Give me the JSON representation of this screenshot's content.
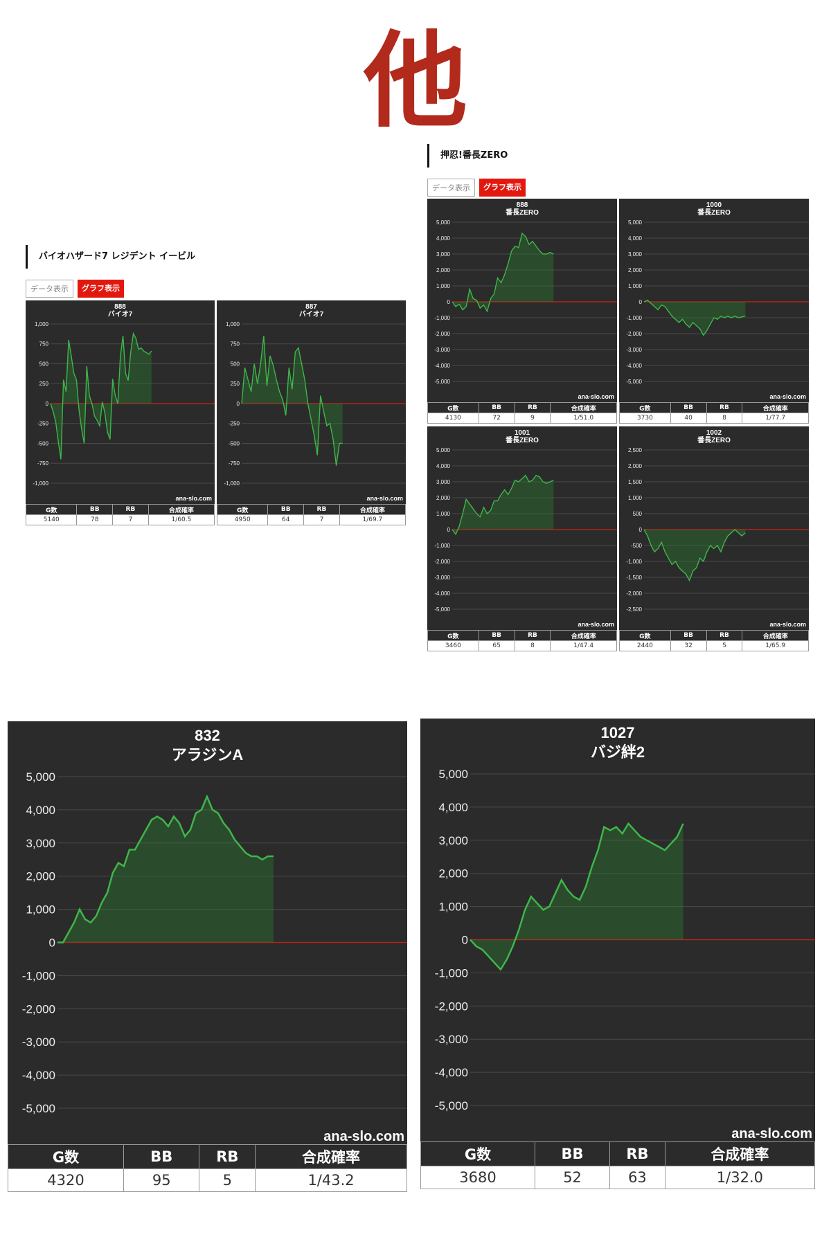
{
  "header": {
    "big_char": "他"
  },
  "sections": [
    {
      "title": "バイオハザード7 レジデント イービル",
      "data_button": "データ表示",
      "graph_button": "グラフ表示"
    },
    {
      "title": "押忍!番長ZERO",
      "data_button": "データ表示",
      "graph_button": "グラフ表示"
    }
  ],
  "table_headers": [
    "G数",
    "BB",
    "RB",
    "合成確率"
  ],
  "watermark": "ana-slo.com",
  "colors": {
    "line": "#3fb64a",
    "fill": "rgba(46,125,50,0.40)",
    "zero_line": "#b3241b",
    "background": "#2b2b2b"
  },
  "chart_data": [
    {
      "type": "line",
      "title": "888",
      "subtitle": "バイオ7",
      "ylim": [
        -1000,
        1000
      ],
      "yticks": [
        "1,000",
        "750",
        "500",
        "250",
        "0",
        "-250",
        "-500",
        "-750",
        "-1,000"
      ],
      "x": [
        0,
        1,
        2,
        3,
        4,
        5,
        6,
        7,
        8,
        9,
        10,
        11,
        12,
        13,
        14,
        15,
        16,
        17,
        18,
        19,
        20,
        21,
        22,
        23,
        24,
        25,
        26,
        27,
        28,
        29,
        30,
        31,
        32,
        33,
        34,
        35,
        36,
        37,
        38,
        39
      ],
      "y": [
        0,
        -100,
        -230,
        -480,
        -700,
        300,
        150,
        800,
        600,
        380,
        300,
        -80,
        -320,
        -500,
        470,
        100,
        0,
        -160,
        -210,
        -280,
        20,
        -120,
        -360,
        -450,
        310,
        100,
        0,
        600,
        850,
        380,
        290,
        650,
        880,
        820,
        680,
        700,
        660,
        640,
        620,
        660
      ],
      "table": {
        "g": "5140",
        "bb": "78",
        "rb": "7",
        "prob": "1/60.5"
      }
    },
    {
      "type": "line",
      "title": "887",
      "subtitle": "バイオ7",
      "ylim": [
        -1000,
        1000
      ],
      "yticks": [
        "1,000",
        "750",
        "500",
        "250",
        "0",
        "-250",
        "-500",
        "-750",
        "-1,000"
      ],
      "x": [
        0,
        1,
        2,
        3,
        4,
        5,
        6,
        7,
        8,
        9,
        10,
        11,
        12,
        13,
        14,
        15,
        16,
        17,
        18,
        19,
        20,
        21,
        22,
        23,
        24,
        25,
        26,
        27,
        28,
        29,
        30,
        31,
        32
      ],
      "y": [
        0,
        450,
        300,
        150,
        500,
        250,
        500,
        850,
        220,
        600,
        480,
        300,
        150,
        50,
        -150,
        450,
        180,
        650,
        700,
        500,
        300,
        0,
        -200,
        -400,
        -650,
        100,
        -100,
        -280,
        -250,
        -450,
        -780,
        -500,
        -500
      ],
      "table": {
        "g": "4950",
        "bb": "64",
        "rb": "7",
        "prob": "1/69.7"
      }
    },
    {
      "type": "line",
      "title": "888",
      "subtitle": "番長ZERO",
      "ylim": [
        -5000,
        5000
      ],
      "yticks": [
        "5,000",
        "4,000",
        "3,000",
        "2,000",
        "1,000",
        "0",
        "-1,000",
        "-2,000",
        "-3,000",
        "-4,000",
        "-5,000"
      ],
      "x": [
        0,
        1,
        2,
        3,
        4,
        5,
        6,
        7,
        8,
        9,
        10,
        11,
        12,
        13,
        14,
        15,
        16,
        17,
        18,
        19,
        20,
        21,
        22,
        23,
        24,
        25,
        26,
        27,
        28,
        29
      ],
      "y": [
        0,
        -300,
        -150,
        -500,
        -300,
        800,
        200,
        100,
        -400,
        -200,
        -600,
        200,
        500,
        1500,
        1200,
        1700,
        2400,
        3200,
        3500,
        3400,
        4300,
        4100,
        3600,
        3800,
        3500,
        3200,
        3000,
        3000,
        3100,
        3000
      ],
      "table": {
        "g": "4130",
        "bb": "72",
        "rb": "9",
        "prob": "1/51.0"
      }
    },
    {
      "type": "line",
      "title": "1000",
      "subtitle": "番長ZERO",
      "ylim": [
        -5000,
        5000
      ],
      "yticks": [
        "5,000",
        "4,000",
        "3,000",
        "2,000",
        "1,000",
        "0",
        "-1,000",
        "-2,000",
        "-3,000",
        "-4,000",
        "-5,000"
      ],
      "x": [
        0,
        1,
        2,
        3,
        4,
        5,
        6,
        7,
        8,
        9,
        10,
        11,
        12,
        13,
        14,
        15,
        16,
        17,
        18,
        19,
        20,
        21,
        22,
        23,
        24,
        25,
        26,
        27,
        28,
        29
      ],
      "y": [
        0,
        100,
        -100,
        -300,
        -500,
        -200,
        -300,
        -600,
        -900,
        -1100,
        -1300,
        -1100,
        -1400,
        -1600,
        -1300,
        -1500,
        -1700,
        -2100,
        -1800,
        -1400,
        -1000,
        -1100,
        -900,
        -1000,
        -900,
        -1000,
        -900,
        -1000,
        -950,
        -900
      ],
      "table": {
        "g": "3730",
        "bb": "40",
        "rb": "8",
        "prob": "1/77.7"
      }
    },
    {
      "type": "line",
      "title": "1001",
      "subtitle": "番長ZERO",
      "ylim": [
        -5000,
        5000
      ],
      "yticks": [
        "5,000",
        "4,000",
        "3,000",
        "2,000",
        "1,000",
        "0",
        "-1,000",
        "-2,000",
        "-3,000",
        "-4,000",
        "-5,000"
      ],
      "x": [
        0,
        1,
        2,
        3,
        4,
        5,
        6,
        7,
        8,
        9,
        10,
        11,
        12,
        13,
        14,
        15,
        16,
        17,
        18,
        19,
        20,
        21,
        22,
        23,
        24,
        25,
        26,
        27,
        28,
        29
      ],
      "y": [
        0,
        -300,
        200,
        1000,
        1900,
        1600,
        1300,
        1000,
        800,
        1400,
        1000,
        1200,
        1800,
        1800,
        2200,
        2500,
        2200,
        2600,
        3100,
        3000,
        3200,
        3400,
        3000,
        3100,
        3400,
        3300,
        3000,
        2900,
        3000,
        3100
      ],
      "table": {
        "g": "3460",
        "bb": "65",
        "rb": "8",
        "prob": "1/47.4"
      }
    },
    {
      "type": "line",
      "title": "1002",
      "subtitle": "番長ZERO",
      "ylim": [
        -2500,
        2500
      ],
      "yticks": [
        "2,500",
        "2,000",
        "1,500",
        "1,000",
        "500",
        "0",
        "-500",
        "-1,000",
        "-1,500",
        "-2,000",
        "-2,500"
      ],
      "x": [
        0,
        1,
        2,
        3,
        4,
        5,
        6,
        7,
        8,
        9,
        10,
        11,
        12,
        13,
        14,
        15,
        16,
        17,
        18,
        19,
        20,
        21,
        22,
        23,
        24,
        25,
        26,
        27,
        28,
        29
      ],
      "y": [
        0,
        -200,
        -500,
        -700,
        -600,
        -400,
        -700,
        -900,
        -1100,
        -1000,
        -1200,
        -1300,
        -1400,
        -1600,
        -1300,
        -1200,
        -900,
        -1000,
        -700,
        -500,
        -600,
        -500,
        -700,
        -400,
        -200,
        -100,
        0,
        -100,
        -200,
        -100
      ],
      "table": {
        "g": "2440",
        "bb": "32",
        "rb": "5",
        "prob": "1/65.9"
      }
    },
    {
      "type": "line",
      "title": "832",
      "subtitle": "アラジンA",
      "ylim": [
        -5000,
        5000
      ],
      "yticks": [
        "5,000",
        "4,000",
        "3,000",
        "2,000",
        "1,000",
        "0",
        "-1,000",
        "-2,000",
        "-3,000",
        "-4,000",
        "-5,000"
      ],
      "x": [
        0,
        1,
        2,
        3,
        4,
        5,
        6,
        7,
        8,
        9,
        10,
        11,
        12,
        13,
        14,
        15,
        16,
        17,
        18,
        19,
        20,
        21,
        22,
        23,
        24,
        25,
        26,
        27,
        28,
        29,
        30,
        31,
        32,
        33,
        34,
        35,
        36,
        37,
        38,
        39
      ],
      "y": [
        0,
        0,
        300,
        600,
        1000,
        700,
        600,
        800,
        1200,
        1500,
        2100,
        2400,
        2300,
        2800,
        2800,
        3100,
        3400,
        3700,
        3800,
        3700,
        3500,
        3800,
        3600,
        3200,
        3400,
        3900,
        4000,
        4400,
        4000,
        3900,
        3600,
        3400,
        3100,
        2900,
        2700,
        2600,
        2600,
        2500,
        2600,
        2600
      ],
      "table": {
        "g": "4320",
        "bb": "95",
        "rb": "5",
        "prob": "1/43.2"
      }
    },
    {
      "type": "line",
      "title": "1027",
      "subtitle": "バジ絆2",
      "ylim": [
        -5000,
        5000
      ],
      "yticks": [
        "5,000",
        "4,000",
        "3,000",
        "2,000",
        "1,000",
        "0",
        "-1,000",
        "-2,000",
        "-3,000",
        "-4,000",
        "-5,000"
      ],
      "x": [
        0,
        1,
        2,
        3,
        4,
        5,
        6,
        7,
        8,
        9,
        10,
        11,
        12,
        13,
        14,
        15,
        16,
        17,
        18,
        19,
        20,
        21,
        22,
        23,
        24,
        25,
        26,
        27,
        28,
        29,
        30,
        31,
        32,
        33,
        34,
        35
      ],
      "y": [
        0,
        -200,
        -300,
        -500,
        -700,
        -900,
        -600,
        -200,
        300,
        900,
        1300,
        1100,
        900,
        1000,
        1400,
        1800,
        1500,
        1300,
        1200,
        1600,
        2200,
        2700,
        3400,
        3300,
        3400,
        3200,
        3500,
        3300,
        3100,
        3000,
        2900,
        2800,
        2700,
        2900,
        3100,
        3500
      ],
      "table": {
        "g": "3680",
        "bb": "52",
        "rb": "63",
        "prob": "1/32.0"
      }
    }
  ]
}
